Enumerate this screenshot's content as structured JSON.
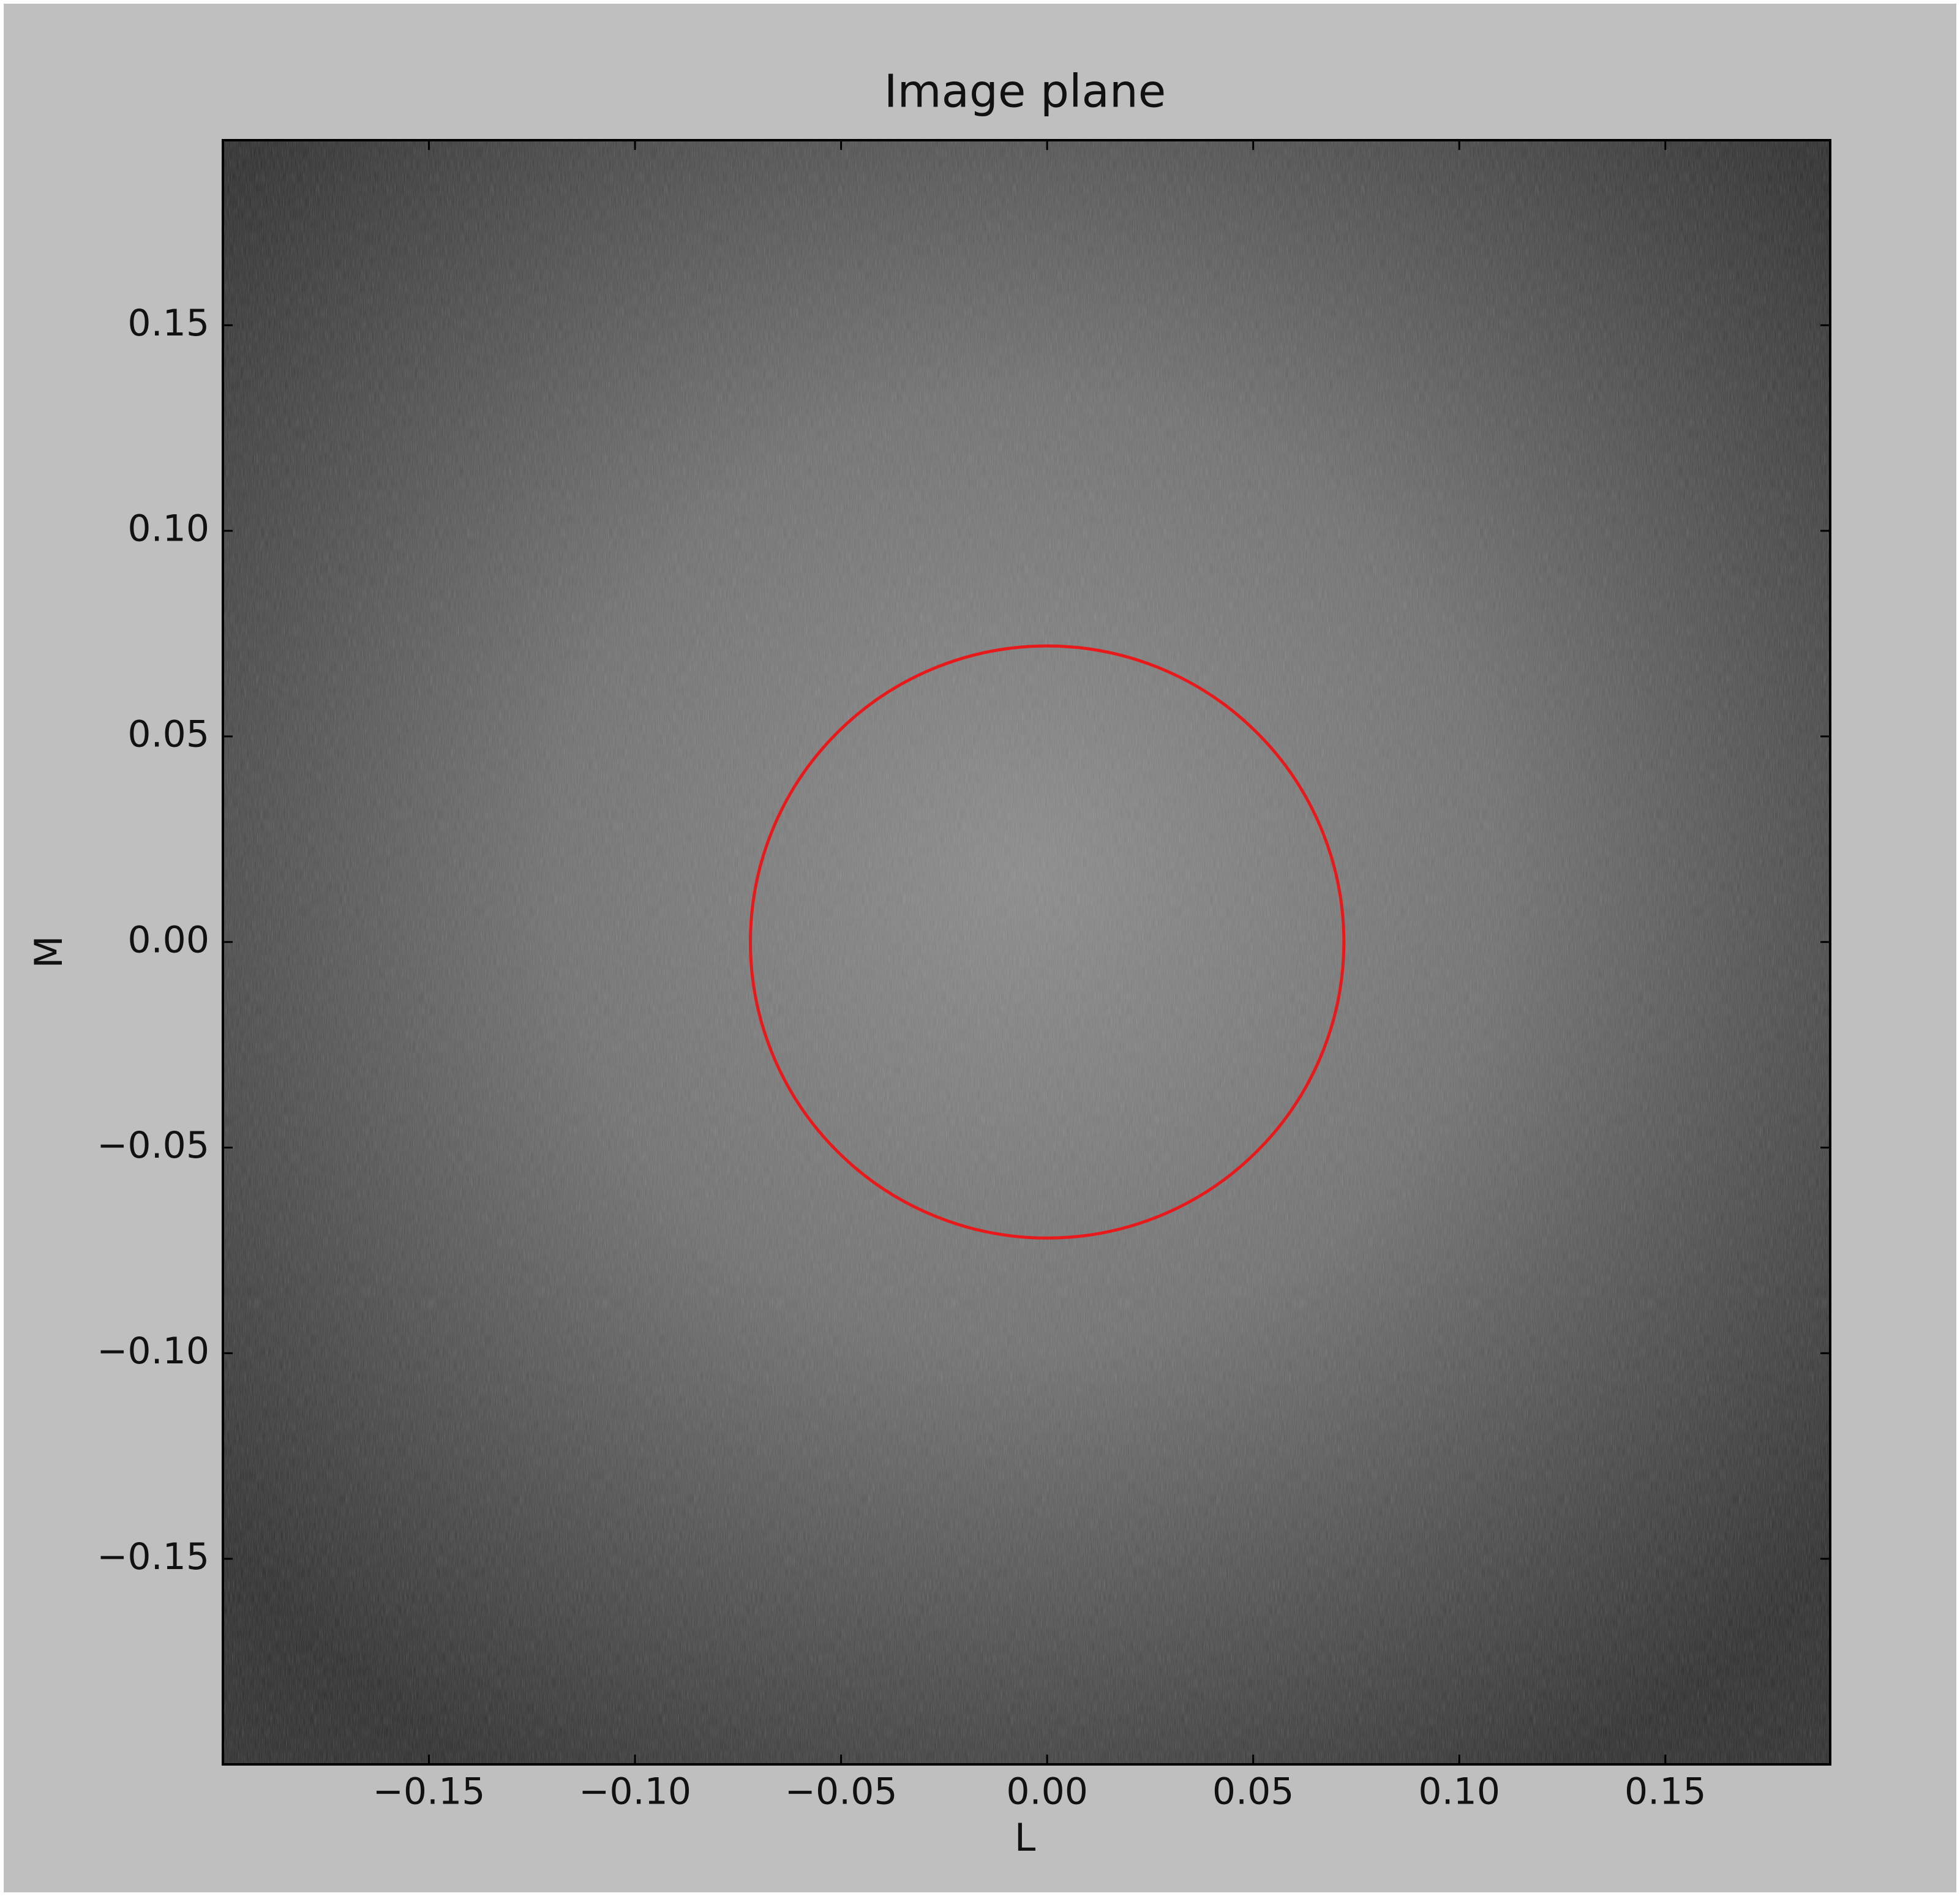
{
  "chart_data": {
    "type": "image",
    "title": "Image plane",
    "x_label": "L",
    "y_label": "M",
    "xlim": [
      -0.2,
      0.19
    ],
    "ylim": [
      -0.2,
      0.195
    ],
    "xticks": [
      {
        "value": -0.15,
        "label": "−0.15"
      },
      {
        "value": -0.1,
        "label": "−0.10"
      },
      {
        "value": -0.05,
        "label": "−0.05"
      },
      {
        "value": 0,
        "label": "0.00"
      },
      {
        "value": 0.05,
        "label": "0.05"
      },
      {
        "value": 0.1,
        "label": "0.10"
      },
      {
        "value": 0.15,
        "label": "0.15"
      }
    ],
    "yticks": [
      {
        "value": -0.15,
        "label": "−0.15"
      },
      {
        "value": -0.1,
        "label": "−0.10"
      },
      {
        "value": -0.05,
        "label": "−0.05"
      },
      {
        "value": 0,
        "label": "0.00"
      },
      {
        "value": 0.05,
        "label": "0.05"
      },
      {
        "value": 0.1,
        "label": "0.10"
      },
      {
        "value": 0.15,
        "label": "0.15"
      }
    ],
    "circle": {
      "center": [
        0,
        0
      ],
      "radius": 0.072,
      "color": "#e8191b"
    }
  }
}
